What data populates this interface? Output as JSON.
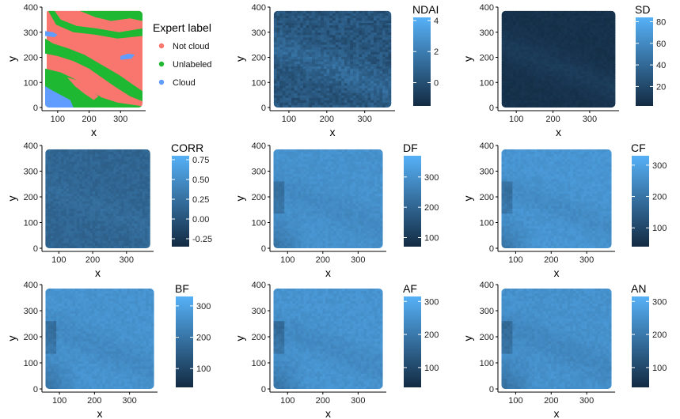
{
  "chart_data": [
    {
      "type": "heatmap",
      "variable": "Expert label",
      "xlabel": "x",
      "ylabel": "y",
      "xlim": [
        50,
        380
      ],
      "ylim": [
        0,
        400
      ],
      "xticks": [
        100,
        200,
        300
      ],
      "yticks": [
        0,
        100,
        200,
        300,
        400
      ],
      "legend": {
        "title": "Expert label",
        "placement": "right",
        "entries": [
          {
            "label": "Not cloud",
            "color": "#F8766D"
          },
          {
            "label": "Unlabeled",
            "color": "#1FB832"
          },
          {
            "label": "Cloud",
            "color": "#619CFF"
          }
        ]
      },
      "regions": [
        {
          "class": "Not cloud",
          "polygon": [
            [
              65,
              385
            ],
            [
              370,
              385
            ],
            [
              370,
              0
            ],
            [
              65,
              0
            ]
          ]
        },
        {
          "class": "Unlabeled",
          "polygon": [
            [
              60,
              385
            ],
            [
              70,
              385
            ],
            [
              95,
              330
            ],
            [
              150,
              300
            ],
            [
              220,
              290
            ],
            [
              290,
              275
            ],
            [
              370,
              285
            ],
            [
              370,
              315
            ],
            [
              295,
              300
            ],
            [
              225,
              315
            ],
            [
              160,
              325
            ],
            [
              110,
              350
            ],
            [
              90,
              385
            ]
          ]
        },
        {
          "class": "Unlabeled",
          "polygon": [
            [
              170,
              385
            ],
            [
              370,
              385
            ],
            [
              370,
              345
            ],
            [
              330,
              355
            ],
            [
              270,
              345
            ],
            [
              220,
              360
            ],
            [
              190,
              375
            ]
          ]
        },
        {
          "class": "Unlabeled",
          "polygon": [
            [
              60,
              275
            ],
            [
              85,
              255
            ],
            [
              135,
              235
            ],
            [
              185,
              210
            ],
            [
              240,
              170
            ],
            [
              295,
              130
            ],
            [
              335,
              95
            ],
            [
              370,
              65
            ],
            [
              370,
              25
            ],
            [
              330,
              45
            ],
            [
              280,
              85
            ],
            [
              240,
              120
            ],
            [
              200,
              155
            ],
            [
              150,
              185
            ],
            [
              100,
              205
            ],
            [
              60,
              215
            ]
          ]
        },
        {
          "class": "Unlabeled",
          "polygon": [
            [
              60,
              155
            ],
            [
              110,
              140
            ],
            [
              160,
              110
            ],
            [
              200,
              70
            ],
            [
              240,
              40
            ],
            [
              290,
              20
            ],
            [
              370,
              5
            ],
            [
              370,
              0
            ],
            [
              60,
              0
            ]
          ]
        },
        {
          "class": "Not cloud",
          "polygon": [
            [
              130,
              120
            ],
            [
              160,
              110
            ],
            [
              205,
              70
            ],
            [
              230,
              45
            ],
            [
              215,
              30
            ],
            [
              185,
              55
            ],
            [
              155,
              85
            ]
          ]
        },
        {
          "class": "Cloud",
          "polygon": [
            [
              60,
              0
            ],
            [
              150,
              0
            ],
            [
              140,
              30
            ],
            [
              110,
              50
            ],
            [
              80,
              70
            ],
            [
              60,
              85
            ]
          ]
        },
        {
          "class": "Cloud",
          "polygon": [
            [
              60,
              305
            ],
            [
              85,
              300
            ],
            [
              100,
              290
            ],
            [
              90,
              280
            ],
            [
              60,
              285
            ]
          ]
        },
        {
          "class": "Cloud",
          "polygon": [
            [
              300,
              190
            ],
            [
              335,
              195
            ],
            [
              345,
              210
            ],
            [
              325,
              215
            ],
            [
              300,
              205
            ]
          ]
        },
        {
          "class": "Not cloud",
          "polygon": [
            [
              90,
              255
            ],
            [
              120,
              245
            ],
            [
              140,
              240
            ],
            [
              130,
              250
            ],
            [
              100,
              260
            ]
          ]
        }
      ]
    },
    {
      "type": "heatmap",
      "variable": "NDAI",
      "xlabel": "x",
      "ylabel": "y",
      "xlim": [
        50,
        380
      ],
      "ylim": [
        0,
        400
      ],
      "xticks": [
        100,
        200,
        300
      ],
      "yticks": [
        0,
        100,
        200,
        300,
        400
      ],
      "colorbar": {
        "title": "NDAI",
        "ticks": [
          0,
          2,
          4
        ],
        "range": [
          -1.5,
          4.2
        ],
        "low_color": "#132B43",
        "high_color": "#56B1F7"
      },
      "field": {
        "mean": 0.3,
        "variation": 1.2,
        "diagonal_band": 0.8
      }
    },
    {
      "type": "heatmap",
      "variable": "SD",
      "xlabel": "x",
      "ylabel": "y",
      "xlim": [
        50,
        380
      ],
      "ylim": [
        0,
        400
      ],
      "xticks": [
        100,
        200,
        300
      ],
      "yticks": [
        0,
        100,
        200,
        300,
        400
      ],
      "colorbar": {
        "title": "SD",
        "ticks": [
          20,
          40,
          60,
          80
        ],
        "range": [
          2,
          84
        ],
        "low_color": "#132B43",
        "high_color": "#56B1F7"
      },
      "field": {
        "mean": 6,
        "variation": 4,
        "diagonal_band": 6
      }
    },
    {
      "type": "heatmap",
      "variable": "CORR",
      "xlabel": "x",
      "ylabel": "y",
      "xlim": [
        50,
        380
      ],
      "ylim": [
        0,
        400
      ],
      "xticks": [
        100,
        200,
        300
      ],
      "yticks": [
        0,
        100,
        200,
        300,
        400
      ],
      "colorbar": {
        "title": "CORR",
        "ticks": [
          -0.25,
          0.0,
          0.25,
          0.5,
          0.75
        ],
        "tick_labels": [
          "-0.25",
          "0.00",
          "0.25",
          "0.50",
          "0.75"
        ],
        "range": [
          -0.35,
          0.8
        ],
        "low_color": "#132B43",
        "high_color": "#56B1F7"
      },
      "field": {
        "mean": 0.15,
        "variation": 0.12,
        "diagonal_band": 0.05
      }
    },
    {
      "type": "heatmap",
      "variable": "DF",
      "xlabel": "x",
      "ylabel": "y",
      "xlim": [
        50,
        380
      ],
      "ylim": [
        0,
        400
      ],
      "xticks": [
        100,
        200,
        300
      ],
      "yticks": [
        0,
        100,
        200,
        300,
        400
      ],
      "colorbar": {
        "title": "DF",
        "ticks": [
          100,
          200,
          300
        ],
        "range": [
          70,
          370
        ],
        "low_color": "#132B43",
        "high_color": "#56B1F7"
      },
      "field": {
        "mean": 300,
        "variation": 25,
        "diagonal_band": 30
      }
    },
    {
      "type": "heatmap",
      "variable": "CF",
      "xlabel": "x",
      "ylabel": "y",
      "xlim": [
        50,
        380
      ],
      "ylim": [
        0,
        400
      ],
      "xticks": [
        100,
        200,
        300
      ],
      "yticks": [
        0,
        100,
        200,
        300,
        400
      ],
      "colorbar": {
        "title": "CF",
        "ticks": [
          100,
          200,
          300
        ],
        "range": [
          40,
          330
        ],
        "low_color": "#132B43",
        "high_color": "#56B1F7"
      },
      "field": {
        "mean": 270,
        "variation": 25,
        "diagonal_band": 35
      }
    },
    {
      "type": "heatmap",
      "variable": "BF",
      "xlabel": "x",
      "ylabel": "y",
      "xlim": [
        50,
        380
      ],
      "ylim": [
        0,
        400
      ],
      "xticks": [
        100,
        200,
        300
      ],
      "yticks": [
        0,
        100,
        200,
        300,
        400
      ],
      "colorbar": {
        "title": "BF",
        "ticks": [
          100,
          200,
          300
        ],
        "range": [
          40,
          330
        ],
        "low_color": "#132B43",
        "high_color": "#56B1F7"
      },
      "field": {
        "mean": 265,
        "variation": 25,
        "diagonal_band": 35
      }
    },
    {
      "type": "heatmap",
      "variable": "AF",
      "xlabel": "x",
      "ylabel": "y",
      "xlim": [
        50,
        380
      ],
      "ylim": [
        0,
        400
      ],
      "xticks": [
        100,
        200,
        300
      ],
      "yticks": [
        0,
        100,
        200,
        300,
        400
      ],
      "colorbar": {
        "title": "AF",
        "ticks": [
          100,
          200,
          300
        ],
        "range": [
          40,
          315
        ],
        "low_color": "#132B43",
        "high_color": "#56B1F7"
      },
      "field": {
        "mean": 255,
        "variation": 25,
        "diagonal_band": 35
      }
    },
    {
      "type": "heatmap",
      "variable": "AN",
      "xlabel": "x",
      "ylabel": "y",
      "xlim": [
        50,
        380
      ],
      "ylim": [
        0,
        400
      ],
      "xticks": [
        100,
        200,
        300
      ],
      "yticks": [
        0,
        100,
        200,
        300,
        400
      ],
      "colorbar": {
        "title": "AN",
        "ticks": [
          100,
          200,
          300
        ],
        "range": [
          40,
          315
        ],
        "low_color": "#132B43",
        "high_color": "#56B1F7"
      },
      "field": {
        "mean": 250,
        "variation": 25,
        "diagonal_band": 35
      }
    }
  ]
}
